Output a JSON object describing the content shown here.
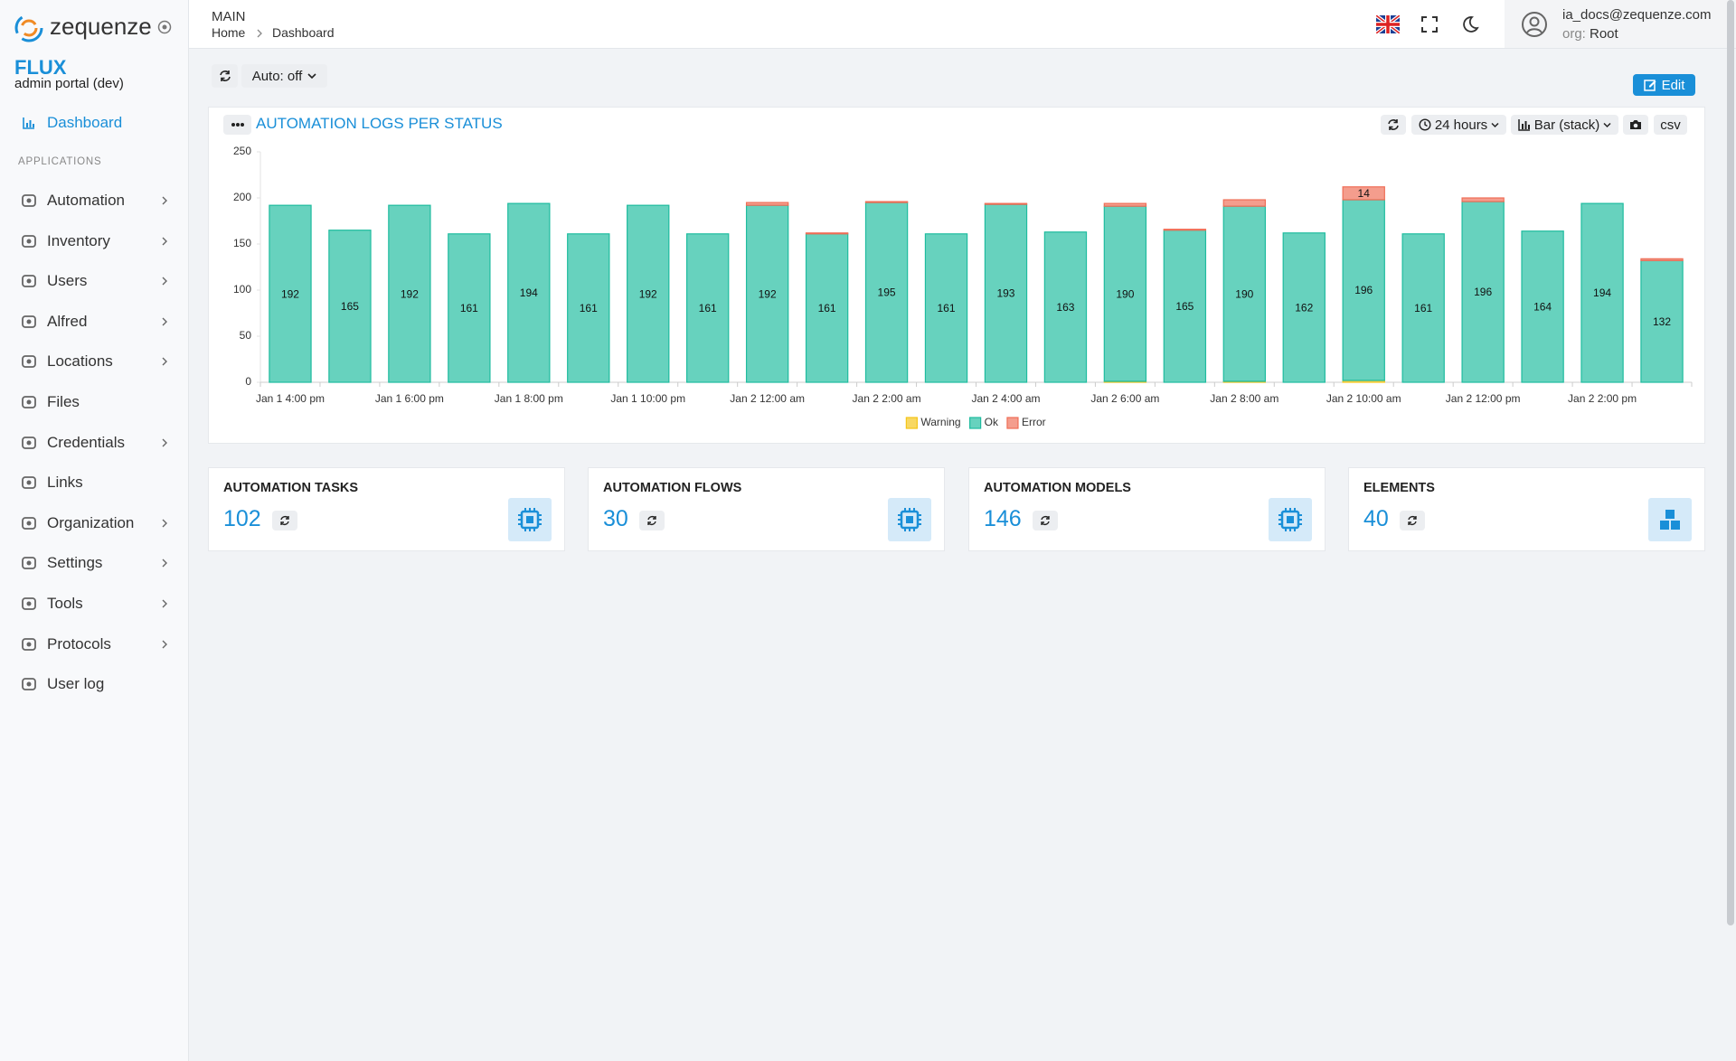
{
  "sidebar": {
    "brand": "zequenze",
    "app": "FLUX",
    "subtitle": "admin portal (dev)",
    "dashboard": "Dashboard",
    "section": "APPLICATIONS",
    "items": [
      {
        "label": "Automation",
        "expandable": true
      },
      {
        "label": "Inventory",
        "expandable": true
      },
      {
        "label": "Users",
        "expandable": true
      },
      {
        "label": "Alfred",
        "expandable": true
      },
      {
        "label": "Locations",
        "expandable": true
      },
      {
        "label": "Files",
        "expandable": false
      },
      {
        "label": "Credentials",
        "expandable": true
      },
      {
        "label": "Links",
        "expandable": false
      },
      {
        "label": "Organization",
        "expandable": true
      },
      {
        "label": "Settings",
        "expandable": true
      },
      {
        "label": "Tools",
        "expandable": true
      },
      {
        "label": "Protocols",
        "expandable": true
      },
      {
        "label": "User log",
        "expandable": false
      }
    ]
  },
  "header": {
    "section": "MAIN",
    "breadcrumb": [
      "Home",
      "Dashboard"
    ],
    "user": "ia_docs@zequenze.com",
    "org_label": "org:",
    "org": "Root"
  },
  "toolbar": {
    "auto": "Auto: off",
    "edit": "Edit"
  },
  "chart_controls": {
    "range": "24 hours",
    "mode": "Bar (stack)",
    "csv": "csv"
  },
  "chart_data": {
    "type": "bar",
    "stacked": true,
    "title": "AUTOMATION LOGS PER STATUS",
    "categories": [
      "Jan 1 4:00 pm",
      null,
      "Jan 1 6:00 pm",
      null,
      "Jan 1 8:00 pm",
      null,
      "Jan 1 10:00 pm",
      null,
      "Jan 2 12:00 am",
      null,
      "Jan 2 2:00 am",
      null,
      "Jan 2 4:00 am",
      null,
      "Jan 2 6:00 am",
      null,
      "Jan 2 8:00 am",
      null,
      "Jan 2 10:00 am",
      null,
      "Jan 2 12:00 pm",
      null,
      "Jan 2 2:00 pm",
      null
    ],
    "series": [
      {
        "name": "Warning",
        "color": "#f5c518",
        "values": [
          0,
          0,
          0,
          0,
          0,
          0,
          0,
          0,
          0,
          0,
          0,
          0,
          0,
          0,
          1,
          0,
          1,
          0,
          2,
          0,
          0,
          0,
          0,
          0
        ]
      },
      {
        "name": "Ok",
        "color": "#1fbc9f",
        "values": [
          192,
          165,
          192,
          161,
          194,
          161,
          192,
          161,
          192,
          161,
          195,
          161,
          193,
          163,
          190,
          165,
          190,
          162,
          196,
          161,
          196,
          164,
          194,
          132
        ]
      },
      {
        "name": "Error",
        "color": "#ef6e57",
        "values": [
          0,
          0,
          0,
          0,
          0,
          0,
          0,
          0,
          3,
          1,
          1,
          0,
          1,
          0,
          3,
          1,
          7,
          0,
          14,
          0,
          4,
          0,
          0,
          2
        ]
      }
    ],
    "ylim": [
      0,
      250
    ],
    "yticks": [
      0,
      50,
      100,
      150,
      200,
      250
    ],
    "grid": false,
    "legend": "bottom"
  },
  "cards": [
    {
      "title": "AUTOMATION TASKS",
      "value": 102
    },
    {
      "title": "AUTOMATION FLOWS",
      "value": 30
    },
    {
      "title": "AUTOMATION MODELS",
      "value": 146
    },
    {
      "title": "ELEMENTS",
      "value": 40
    }
  ]
}
